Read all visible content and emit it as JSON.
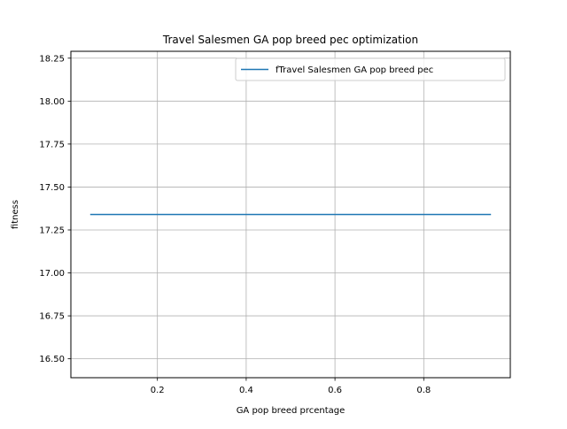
{
  "chart_data": {
    "type": "line",
    "title": "Travel Salesmen GA  pop breed pec optimization",
    "xlabel": "GA pop breed prcentage",
    "ylabel": "fitness",
    "xlim": [
      0.005,
      0.995
    ],
    "ylim": [
      16.39,
      18.29
    ],
    "xticks": [
      0.2,
      0.4,
      0.6,
      0.8
    ],
    "xtick_labels": [
      "0.2",
      "0.4",
      "0.6",
      "0.8"
    ],
    "yticks": [
      16.5,
      16.75,
      17.0,
      17.25,
      17.5,
      17.75,
      18.0,
      18.25
    ],
    "ytick_labels": [
      "16.50",
      "16.75",
      "17.00",
      "17.25",
      "17.50",
      "17.75",
      "18.00",
      "18.25"
    ],
    "grid": true,
    "legend_position": "top-right",
    "series": [
      {
        "name": "fTravel Salesmen GA  pop breed pec",
        "color": "#1f77b4",
        "x": [
          0.05,
          0.1,
          0.15,
          0.2,
          0.25,
          0.3,
          0.35,
          0.4,
          0.45,
          0.5,
          0.55,
          0.6,
          0.65,
          0.7,
          0.75,
          0.8,
          0.85,
          0.9,
          0.95
        ],
        "y": [
          17.34,
          17.34,
          17.34,
          17.34,
          17.34,
          17.34,
          17.34,
          17.34,
          17.34,
          17.34,
          17.34,
          17.34,
          17.34,
          17.34,
          17.34,
          17.34,
          17.34,
          17.34,
          17.34
        ]
      }
    ]
  }
}
